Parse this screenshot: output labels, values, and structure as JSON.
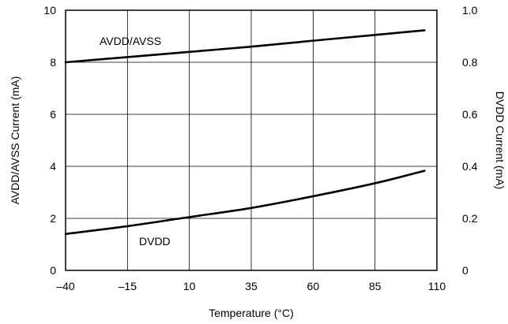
{
  "chart_data": {
    "type": "line",
    "xlabel": "Temperature (°C)",
    "ylabel_left": "AVDD/AVSS Current (mA)",
    "ylabel_right": "DVDD Current (mA)",
    "xlim": [
      -40,
      110
    ],
    "ylim_left": [
      0,
      10
    ],
    "ylim_right": [
      0,
      1.0
    ],
    "x_ticks": [
      -40,
      -15,
      10,
      35,
      60,
      85,
      110
    ],
    "x_tick_labels": [
      "–40",
      "–15",
      "10",
      "35",
      "60",
      "85",
      "110"
    ],
    "y_left_ticks": [
      0,
      2,
      4,
      6,
      8,
      10
    ],
    "y_left_tick_labels": [
      "0",
      "2",
      "4",
      "6",
      "8",
      "10"
    ],
    "y_right_ticks": [
      0,
      0.2,
      0.4,
      0.6,
      0.8,
      1.0
    ],
    "y_right_tick_labels": [
      "0",
      "0.2",
      "0.4",
      "0.6",
      "0.8",
      "1.0"
    ],
    "grid": true,
    "series": [
      {
        "name": "AVDD/AVSS",
        "axis": "left",
        "x": [
          -40,
          -15,
          10,
          35,
          60,
          85,
          105
        ],
        "y": [
          8.0,
          8.2,
          8.4,
          8.6,
          8.83,
          9.05,
          9.23
        ]
      },
      {
        "name": "DVDD",
        "axis": "right",
        "x": [
          -40,
          -15,
          10,
          35,
          60,
          85,
          105
        ],
        "y": [
          0.14,
          0.17,
          0.205,
          0.24,
          0.285,
          0.335,
          0.383
        ]
      }
    ]
  }
}
